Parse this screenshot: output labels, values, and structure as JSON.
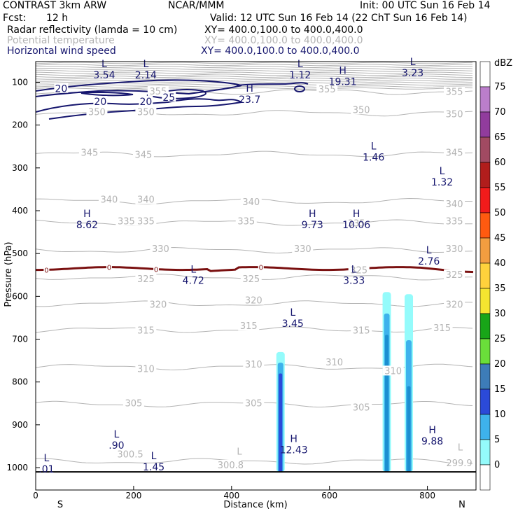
{
  "header": {
    "model": "CONTRAST  3km ARW",
    "org": "NCAR/MMM",
    "init": "Init: 00 UTC Sun 16 Feb 14",
    "fcst_label": "Fcst:",
    "fcst_value": "12 h",
    "valid": "Valid: 12 UTC Sun 16 Feb 14 (22 ChT Sun 16 Feb 14)",
    "fields": [
      {
        "name": "Radar reflectivity (lamda = 10 cm)",
        "xy": "XY= 400.0,100.0 to 400.0,400.0",
        "color": "#000000"
      },
      {
        "name": "Potential temperature",
        "xy": "XY= 400.0,100.0 to 400.0,400.0",
        "color": "#b3b3b3"
      },
      {
        "name": "Horizontal wind speed",
        "xy": "XY= 400.0,100.0 to 400.0,400.0",
        "color": "#16166e"
      }
    ]
  },
  "chart_data": {
    "type": "cross-section",
    "xlabel": "Distance (km)",
    "ylabel": "Pressure (hPa)",
    "xlim": [
      0,
      890
    ],
    "ylim": [
      1010,
      45
    ],
    "x_ticks": [
      0,
      200,
      400,
      600,
      800
    ],
    "y_ticks": [
      100,
      200,
      300,
      400,
      500,
      600,
      700,
      800,
      900,
      1000
    ],
    "end_labels": {
      "left": "S",
      "right": "N"
    },
    "colorbar": {
      "unit": "dBZ",
      "levels": [
        75,
        70,
        65,
        60,
        55,
        50,
        45,
        40,
        35,
        30,
        25,
        20,
        15,
        10,
        5,
        0
      ],
      "colors": [
        "#ffffff",
        "#bb7ecb",
        "#913c9d",
        "#a14a62",
        "#b11d1c",
        "#f21b1b",
        "#ff5a10",
        "#f39d40",
        "#ffd23c",
        "#f5e530",
        "#18a518",
        "#6ade3a",
        "#3d7cb8",
        "#2b4ad9",
        "#3eb2ec",
        "#94fbfb",
        "#ffffff"
      ]
    },
    "theta_labels": [
      {
        "x": 250,
        "p": 122,
        "text": "355"
      },
      {
        "x": 595,
        "p": 117,
        "text": "355"
      },
      {
        "x": 855,
        "p": 123,
        "text": "355"
      },
      {
        "x": 125,
        "p": 170,
        "text": "350"
      },
      {
        "x": 225,
        "p": 170,
        "text": "350"
      },
      {
        "x": 665,
        "p": 165,
        "text": "350"
      },
      {
        "x": 855,
        "p": 175,
        "text": "350"
      },
      {
        "x": 110,
        "p": 265,
        "text": "345"
      },
      {
        "x": 220,
        "p": 270,
        "text": "345"
      },
      {
        "x": 855,
        "p": 265,
        "text": "345"
      },
      {
        "x": 150,
        "p": 375,
        "text": "340"
      },
      {
        "x": 225,
        "p": 375,
        "text": "340"
      },
      {
        "x": 440,
        "p": 380,
        "text": "340"
      },
      {
        "x": 855,
        "p": 385,
        "text": "340"
      },
      {
        "x": 185,
        "p": 425,
        "text": "335"
      },
      {
        "x": 225,
        "p": 425,
        "text": "335"
      },
      {
        "x": 430,
        "p": 425,
        "text": "335"
      },
      {
        "x": 655,
        "p": 430,
        "text": "335"
      },
      {
        "x": 855,
        "p": 425,
        "text": "335"
      },
      {
        "x": 255,
        "p": 490,
        "text": "330"
      },
      {
        "x": 545,
        "p": 490,
        "text": "330"
      },
      {
        "x": 855,
        "p": 490,
        "text": "330"
      },
      {
        "x": 225,
        "p": 560,
        "text": "325"
      },
      {
        "x": 440,
        "p": 560,
        "text": "325"
      },
      {
        "x": 660,
        "p": 540,
        "text": "325"
      },
      {
        "x": 855,
        "p": 550,
        "text": "325"
      },
      {
        "x": 250,
        "p": 620,
        "text": "320"
      },
      {
        "x": 445,
        "p": 610,
        "text": "320"
      },
      {
        "x": 855,
        "p": 620,
        "text": "320"
      },
      {
        "x": 225,
        "p": 680,
        "text": "315"
      },
      {
        "x": 435,
        "p": 670,
        "text": "315"
      },
      {
        "x": 665,
        "p": 680,
        "text": "315"
      },
      {
        "x": 830,
        "p": 675,
        "text": "315"
      },
      {
        "x": 225,
        "p": 770,
        "text": "310"
      },
      {
        "x": 445,
        "p": 760,
        "text": "310"
      },
      {
        "x": 610,
        "p": 755,
        "text": "310"
      },
      {
        "x": 730,
        "p": 775,
        "text": "310"
      },
      {
        "x": 200,
        "p": 850,
        "text": "305"
      },
      {
        "x": 445,
        "p": 850,
        "text": "305"
      },
      {
        "x": 665,
        "p": 860,
        "text": "305"
      },
      {
        "x": 193,
        "p": 970,
        "text": "300.5"
      },
      {
        "x": 398,
        "p": 995,
        "text": "300.8"
      },
      {
        "x": 865,
        "p": 990,
        "text": "299.9"
      }
    ],
    "theta_extrema": [
      {
        "x": 416,
        "p": 970,
        "text": "L"
      },
      {
        "x": 867,
        "p": 960,
        "text": "L"
      }
    ],
    "wind_extrema": [
      {
        "x": 140,
        "p": 65,
        "sym": "L",
        "val": "3.54"
      },
      {
        "x": 225,
        "p": 65,
        "sym": "L",
        "val": "2.14"
      },
      {
        "x": 540,
        "p": 65,
        "sym": "L",
        "val": "1.12"
      },
      {
        "x": 627,
        "p": 80,
        "sym": "H",
        "val": "19.31"
      },
      {
        "x": 770,
        "p": 60,
        "sym": "L",
        "val": "3.23"
      },
      {
        "x": 437,
        "p": 122,
        "sym": "H",
        "val": "23.7"
      },
      {
        "x": 690,
        "p": 257,
        "sym": "L",
        "val": "1.46"
      },
      {
        "x": 830,
        "p": 315,
        "sym": "L",
        "val": "1.32"
      },
      {
        "x": 105,
        "p": 415,
        "sym": "H",
        "val": "8.62"
      },
      {
        "x": 565,
        "p": 415,
        "sym": "H",
        "val": "9.73"
      },
      {
        "x": 655,
        "p": 415,
        "sym": "H",
        "val": "10.06"
      },
      {
        "x": 803,
        "p": 500,
        "sym": "L",
        "val": "2.76"
      },
      {
        "x": 322,
        "p": 545,
        "sym": "L",
        "val": "4.72"
      },
      {
        "x": 650,
        "p": 545,
        "sym": "L",
        "val": "3.33"
      },
      {
        "x": 525,
        "p": 645,
        "sym": "L",
        "val": "3.45"
      },
      {
        "x": 165,
        "p": 930,
        "sym": "L",
        "val": ".90"
      },
      {
        "x": 241,
        "p": 980,
        "sym": "L",
        "val": "1.45"
      },
      {
        "x": 527,
        "p": 940,
        "sym": "H",
        "val": "12.43"
      },
      {
        "x": 810,
        "p": 920,
        "sym": "H",
        "val": "9.88"
      },
      {
        "x": 22,
        "p": 985,
        "sym": "L",
        "val": ".01"
      }
    ],
    "wind_contour_labels": [
      {
        "x": 52,
        "p": 115,
        "text": "20"
      },
      {
        "x": 132,
        "p": 145,
        "text": "20"
      },
      {
        "x": 225,
        "p": 145,
        "text": "20"
      },
      {
        "x": 272,
        "p": 135,
        "text": "25"
      }
    ],
    "freezing_level": {
      "label": "0",
      "label_x": [
        22,
        150,
        246,
        460
      ]
    },
    "reflectivity_cells": [
      {
        "x": 500,
        "top_p": 730,
        "core_top_p": 780,
        "max_dbz": 20
      },
      {
        "x": 717,
        "top_p": 590,
        "core_top_p": 690,
        "max_dbz": 15
      },
      {
        "x": 762,
        "top_p": 595,
        "core_top_p": 810,
        "max_dbz": 10
      }
    ]
  }
}
